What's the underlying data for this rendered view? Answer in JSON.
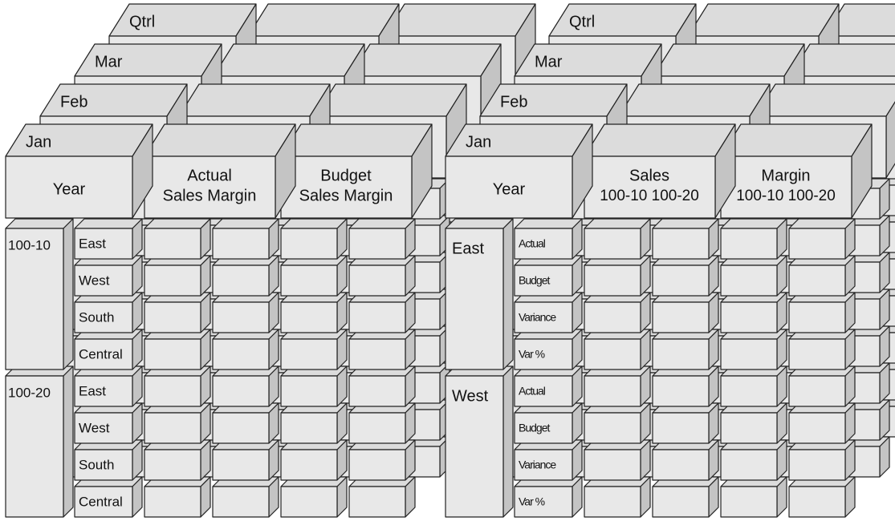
{
  "cubes": [
    {
      "layers": [
        "Qtrl",
        "Mar",
        "Feb",
        "Jan"
      ],
      "corner": "Year",
      "columns": [
        [
          "Actual",
          "Sales Margin"
        ],
        [
          "Budget",
          "Sales Margin"
        ]
      ],
      "groups": [
        {
          "label": "100-10",
          "rows": [
            "East",
            "West",
            "South",
            "Central"
          ]
        },
        {
          "label": "100-20",
          "rows": [
            "East",
            "West",
            "South",
            "Central"
          ]
        }
      ]
    },
    {
      "layers": [
        "Qtrl",
        "Mar",
        "Feb",
        "Jan"
      ],
      "corner": "Year",
      "columns": [
        [
          "Sales",
          "100-10 100-20"
        ],
        [
          "Margin",
          "100-10 100-20"
        ]
      ],
      "groups": [
        {
          "label": "East",
          "rows": [
            "Actual",
            "Budget",
            "Variance",
            "Var %"
          ]
        },
        {
          "label": "West",
          "rows": [
            "Actual",
            "Budget",
            "Variance",
            "Var %"
          ]
        }
      ]
    }
  ]
}
